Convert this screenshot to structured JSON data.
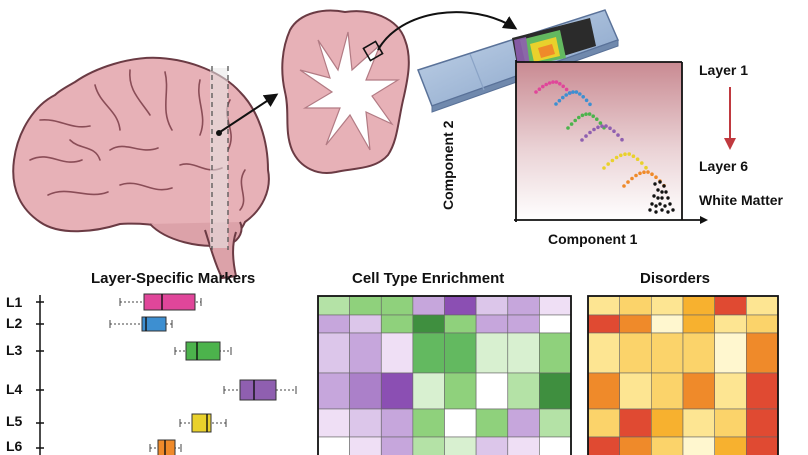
{
  "embedding": {
    "x_label": "Component 1",
    "y_label": "Component 2",
    "top_label": "Layer 1",
    "bottom_label": "Layer 6",
    "wm_label": "White Matter"
  },
  "markers": {
    "title": "Layer-Specific Markers",
    "rows": [
      {
        "label": "L1",
        "color": "#e0469a"
      },
      {
        "label": "L2",
        "color": "#3d8fd1"
      },
      {
        "label": "L3",
        "color": "#4cb34c"
      },
      {
        "label": "L4",
        "color": "#8f5fb0"
      },
      {
        "label": "L5",
        "color": "#e9d12c"
      },
      {
        "label": "L6",
        "color": "#ef8a2a"
      }
    ]
  },
  "enrichment": {
    "title": "Cell Type Enrichment",
    "palette": [
      "#ffffff",
      "#d8f0d0",
      "#b4e2a6",
      "#8fd17c",
      "#63b960",
      "#3f8f3f",
      "#efdff5",
      "#dcc6ea",
      "#c6a6dc",
      "#ab80c9",
      "#8b4fb3"
    ],
    "cells": [
      [
        2,
        3,
        3,
        8,
        10,
        7,
        8,
        6
      ],
      [
        8,
        7,
        3,
        5,
        3,
        8,
        8,
        0
      ],
      [
        7,
        8,
        6,
        4,
        4,
        1,
        1,
        3
      ],
      [
        8,
        9,
        10,
        1,
        3,
        0,
        2,
        5
      ],
      [
        6,
        7,
        8,
        3,
        0,
        3,
        8,
        2
      ],
      [
        0,
        6,
        8,
        2,
        1,
        7,
        6,
        0
      ]
    ]
  },
  "disorders": {
    "title": "Disorders",
    "palette": [
      "#fff7cf",
      "#fde592",
      "#fbd36a",
      "#f7b12f",
      "#ef8a2a",
      "#e04a32"
    ],
    "cells": [
      [
        1,
        2,
        1,
        3,
        5,
        1
      ],
      [
        5,
        4,
        0,
        3,
        1,
        2
      ],
      [
        1,
        2,
        2,
        2,
        0,
        4
      ],
      [
        4,
        1,
        2,
        4,
        1,
        5
      ],
      [
        2,
        5,
        3,
        1,
        2,
        5
      ],
      [
        5,
        4,
        2,
        0,
        3,
        5
      ]
    ]
  },
  "colors": {
    "brain": "#e7b1b7",
    "brain_edge": "#6b3b44",
    "white_matter": "#ffffff",
    "arrow_down": "#c0393f",
    "slide": "#9fb9d8"
  }
}
